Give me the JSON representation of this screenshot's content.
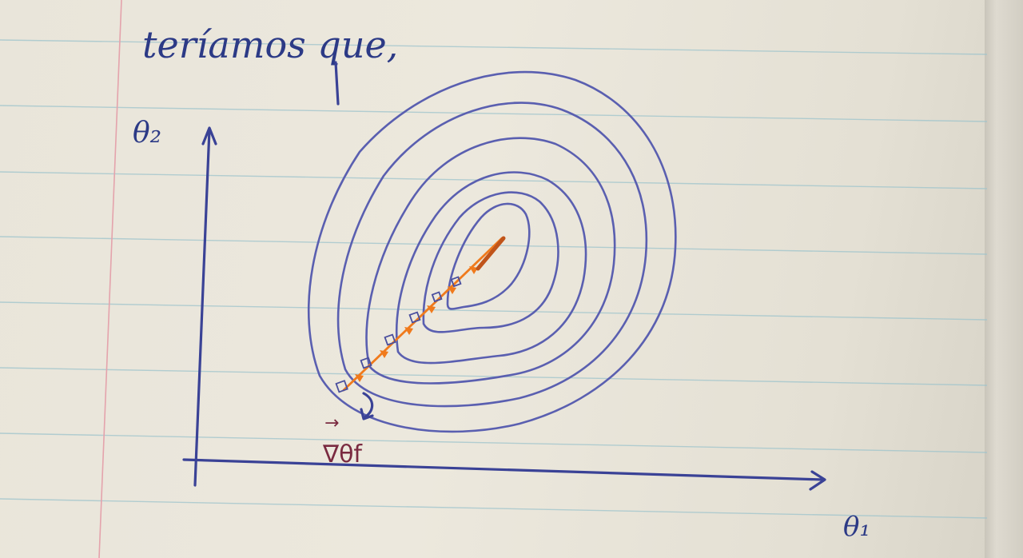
{
  "heading": "teríamos que,",
  "axes": {
    "y_label": "θ₂",
    "x_label": "θ₁"
  },
  "gradient_label": "∇θf",
  "gradient_arrow": "→",
  "colors": {
    "paper": "#ece8dd",
    "ink": "#3a4296",
    "contour": "#5a5fb0",
    "descent_path": "#f07a1c",
    "ruled_line": "#9ec4cc",
    "margin_line": "#e4a3ac"
  },
  "contour_count": 6,
  "descent_steps": 7
}
